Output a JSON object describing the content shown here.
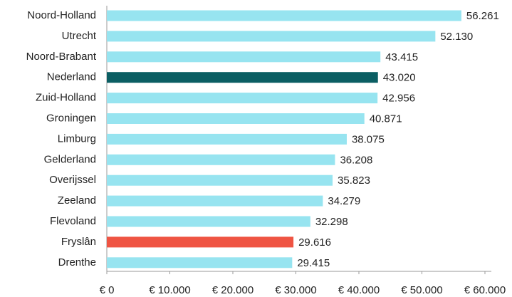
{
  "chart_data": {
    "type": "barh",
    "categories": [
      "Noord-Holland",
      "Utrecht",
      "Noord-Brabant",
      "Nederland",
      "Zuid-Holland",
      "Groningen",
      "Limburg",
      "Gelderland",
      "Overijssel",
      "Zeeland",
      "Flevoland",
      "Fryslân",
      "Drenthe"
    ],
    "values": [
      56261,
      52130,
      43415,
      43020,
      42956,
      40871,
      38075,
      36208,
      35823,
      34279,
      32298,
      29616,
      29415
    ],
    "value_labels": [
      "56.261",
      "52.130",
      "43.415",
      "43.020",
      "42.956",
      "40.871",
      "38.075",
      "36.208",
      "35.823",
      "34.279",
      "32.298",
      "29.616",
      "29.415"
    ],
    "colors": [
      "#97e4f0",
      "#97e4f0",
      "#97e4f0",
      "#0b5e63",
      "#97e4f0",
      "#97e4f0",
      "#97e4f0",
      "#97e4f0",
      "#97e4f0",
      "#97e4f0",
      "#97e4f0",
      "#ef5443",
      "#97e4f0"
    ],
    "xlim": [
      0,
      60000
    ],
    "xticks": [
      {
        "value": 0,
        "label": "€ 0"
      },
      {
        "value": 10000,
        "label": "€ 10.000"
      },
      {
        "value": 20000,
        "label": "€ 20.000"
      },
      {
        "value": 30000,
        "label": "€ 30.000"
      },
      {
        "value": 40000,
        "label": "€ 40.000"
      },
      {
        "value": 50000,
        "label": "€ 50.000"
      },
      {
        "value": 60000,
        "label": "€ 60.000"
      }
    ]
  }
}
